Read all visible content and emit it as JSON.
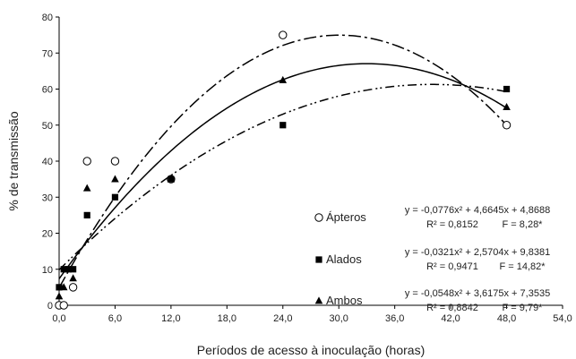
{
  "chart_data": {
    "type": "scatter",
    "xlabel": "Períodos de acesso à inoculação (horas)",
    "ylabel": "% de transmissão",
    "xlim": [
      0,
      54
    ],
    "ylim": [
      0,
      80
    ],
    "x_ticks": [
      "0,0",
      "6,0",
      "12,0",
      "18,0",
      "24,0",
      "30,0",
      "36,0",
      "42,0",
      "48,0",
      "54,0"
    ],
    "y_ticks": [
      "0",
      "10",
      "20",
      "30",
      "40",
      "50",
      "60",
      "70",
      "80"
    ],
    "grid": false,
    "legend_position": "bottom-right",
    "series": [
      {
        "name": "Ápteros",
        "marker": "open-circle",
        "line_style": "dash-dot",
        "points": [
          [
            0,
            0
          ],
          [
            0.5,
            0
          ],
          [
            1.5,
            5
          ],
          [
            3,
            40
          ],
          [
            6,
            40
          ],
          [
            12,
            35
          ],
          [
            24,
            75
          ],
          [
            48,
            50
          ]
        ],
        "equation": "y = -0,0776x² + 4,6645x + 4,8688",
        "r2": "R² = 0,8152",
        "f": "F = 8,28*",
        "coef": [
          -0.0776,
          4.6645,
          4.8688
        ]
      },
      {
        "name": "Alados",
        "marker": "filled-square",
        "line_style": "dash-dot-dot",
        "points": [
          [
            0,
            5
          ],
          [
            0.5,
            10
          ],
          [
            1,
            10
          ],
          [
            1.5,
            10
          ],
          [
            3,
            25
          ],
          [
            6,
            30
          ],
          [
            12,
            35
          ],
          [
            24,
            50
          ],
          [
            48,
            60
          ]
        ],
        "equation": "y = -0,0321x² + 2,5704x + 9,8381",
        "r2": "R² = 0,9471",
        "f": "F = 14,82*",
        "coef": [
          -0.0321,
          2.5704,
          9.8381
        ]
      },
      {
        "name": "Ambos",
        "marker": "filled-triangle",
        "line_style": "solid",
        "points": [
          [
            0,
            2.5
          ],
          [
            0.5,
            5
          ],
          [
            1.5,
            7.5
          ],
          [
            3,
            32.5
          ],
          [
            6,
            35
          ],
          [
            12,
            35
          ],
          [
            24,
            62.5
          ],
          [
            48,
            55
          ]
        ],
        "equation": "y = -0,0548x² + 3,6175x + 7,3535",
        "r2": "R² = 0,8842",
        "f": "F = 9,79*",
        "coef": [
          -0.0548,
          3.6175,
          7.3535
        ]
      }
    ]
  }
}
